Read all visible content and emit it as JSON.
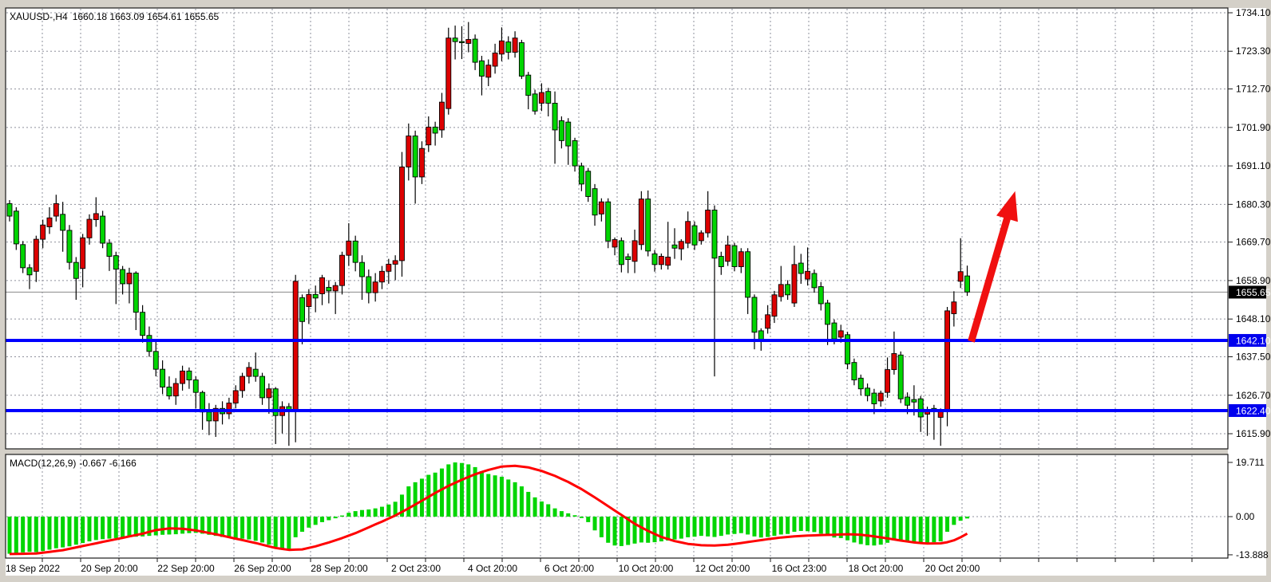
{
  "window": {
    "title_symbol": "XAUUSD-,H4",
    "title_ohlc": "1660.18 1663.09 1654.61 1655.65"
  },
  "indicator_label": {
    "name": "MACD(12,26,9)",
    "values": "-0.667 -6.166"
  },
  "colors": {
    "bull": "#dd0000",
    "bear": "#00d500",
    "wick": "#000000",
    "grid": "#8f909c",
    "support_line": "#0000ff",
    "signal_line": "#ff0000",
    "histogram": "#00d500",
    "arrow": "#f01010",
    "current_price_line": "#8a8a8a",
    "tag_current_bg": "#000000",
    "tag_level_bg": "#0000ee",
    "tag_text": "#ffffff",
    "pane_bg": "#ffffff",
    "frame_bg": "#d4d0c8",
    "border": "#1a1a1a",
    "text": "#000000"
  },
  "chart_data": {
    "type": "candlestick",
    "symbol": "XAUUSD-",
    "timeframe": "H4",
    "title": "XAUUSD-,H4 1660.18 1663.09 1654.61 1655.65",
    "current_candle": {
      "open": 1660.18,
      "high": 1663.09,
      "low": 1654.61,
      "close": 1655.65
    },
    "current_price": 1655.65,
    "support_levels": [
      1642.1,
      1622.4
    ],
    "price_axis": {
      "ticks": [
        1734.1,
        1723.3,
        1712.7,
        1701.9,
        1691.1,
        1680.3,
        1669.7,
        1658.9,
        1648.1,
        1637.5,
        1626.7,
        1615.9
      ],
      "range": [
        1615.9,
        1734.1
      ]
    },
    "time_axis": {
      "ticks": [
        "18 Sep 2022",
        "20 Sep 20:00",
        "22 Sep 20:00",
        "26 Sep 20:00",
        "28 Sep 20:00",
        "2 Oct 23:00",
        "4 Oct 20:00",
        "6 Oct 20:00",
        "10 Oct 20:00",
        "12 Oct 20:00",
        "16 Oct 23:00",
        "18 Oct 20:00",
        "20 Oct 20:00"
      ]
    },
    "candles": [
      [
        1680.5,
        1681.5,
        1675.5,
        1677.0
      ],
      [
        1678.4,
        1679.5,
        1667.5,
        1669.2
      ],
      [
        1669.0,
        1670.0,
        1661.0,
        1662.5
      ],
      [
        1662.5,
        1663.5,
        1656.5,
        1660.5
      ],
      [
        1661.5,
        1671.5,
        1658.5,
        1670.5
      ],
      [
        1670.5,
        1676.0,
        1668.0,
        1674.5
      ],
      [
        1674.0,
        1679.5,
        1672.0,
        1676.5
      ],
      [
        1677.0,
        1683.0,
        1675.5,
        1680.5
      ],
      [
        1677.5,
        1681.0,
        1667.0,
        1673.0
      ],
      [
        1673.0,
        1674.5,
        1662.0,
        1664.0
      ],
      [
        1664.0,
        1665.5,
        1653.5,
        1659.5
      ],
      [
        1662.3,
        1672.0,
        1657.0,
        1670.9
      ],
      [
        1670.9,
        1677.5,
        1669.0,
        1676.1
      ],
      [
        1676.0,
        1682.3,
        1674.0,
        1677.7
      ],
      [
        1677.0,
        1678.5,
        1668.0,
        1669.4
      ],
      [
        1669.4,
        1670.5,
        1661.6,
        1665.7
      ],
      [
        1665.9,
        1667.0,
        1652.3,
        1662.1
      ],
      [
        1662.0,
        1663.0,
        1655.0,
        1658.0
      ],
      [
        1658.0,
        1662.5,
        1652.5,
        1661.0
      ],
      [
        1661.0,
        1661.5,
        1645.0,
        1650.0
      ],
      [
        1650.0,
        1652.0,
        1641.5,
        1643.5
      ],
      [
        1643.5,
        1646.0,
        1637.5,
        1639.0
      ],
      [
        1639.0,
        1642.0,
        1632.0,
        1634.0
      ],
      [
        1634.0,
        1636.5,
        1627.0,
        1629.0
      ],
      [
        1629.0,
        1632.0,
        1625.5,
        1626.5
      ],
      [
        1626.5,
        1631.5,
        1624.0,
        1630.0
      ],
      [
        1630.0,
        1635.0,
        1628.0,
        1633.5
      ],
      [
        1633.5,
        1634.5,
        1628.5,
        1631.0
      ],
      [
        1631.0,
        1632.0,
        1623.0,
        1627.5
      ],
      [
        1627.5,
        1628.0,
        1617.0,
        1622.0
      ],
      [
        1622.0,
        1624.5,
        1615.5,
        1619.5
      ],
      [
        1619.5,
        1624.0,
        1615.0,
        1623.0
      ],
      [
        1623.0,
        1625.0,
        1618.5,
        1621.5
      ],
      [
        1621.5,
        1626.0,
        1620.0,
        1624.5
      ],
      [
        1624.5,
        1629.5,
        1623.0,
        1628.0
      ],
      [
        1628.0,
        1633.0,
        1626.0,
        1632.0
      ],
      [
        1632.0,
        1636.0,
        1630.0,
        1634.5
      ],
      [
        1634.0,
        1638.7,
        1630.5,
        1632.0
      ],
      [
        1632.0,
        1633.0,
        1624.0,
        1626.0
      ],
      [
        1626.0,
        1630.0,
        1621.5,
        1628.5
      ],
      [
        1628.5,
        1629.0,
        1613.0,
        1621.0
      ],
      [
        1621.0,
        1625.0,
        1616.0,
        1623.5
      ],
      [
        1623.5,
        1624.5,
        1612.5,
        1622.5
      ],
      [
        1622.4,
        1660.5,
        1613.5,
        1658.7
      ],
      [
        1654.1,
        1655.0,
        1641.0,
        1647.4
      ],
      [
        1651.6,
        1656.5,
        1646.7,
        1655.0
      ],
      [
        1655.0,
        1657.5,
        1650.0,
        1654.0
      ],
      [
        1655.2,
        1660.5,
        1652.0,
        1659.7
      ],
      [
        1657.0,
        1659.0,
        1652.5,
        1656.0
      ],
      [
        1656.0,
        1658.5,
        1649.5,
        1657.5
      ],
      [
        1657.5,
        1667.0,
        1655.0,
        1666.0
      ],
      [
        1666.0,
        1675.0,
        1663.0,
        1670.0
      ],
      [
        1670.0,
        1671.5,
        1661.5,
        1664.0
      ],
      [
        1664.0,
        1666.0,
        1653.5,
        1660.0
      ],
      [
        1660.0,
        1662.0,
        1652.5,
        1655.5
      ],
      [
        1655.5,
        1661.0,
        1653.0,
        1658.5
      ],
      [
        1658.5,
        1663.0,
        1656.5,
        1661.5
      ],
      [
        1661.5,
        1665.0,
        1658.0,
        1663.5
      ],
      [
        1663.5,
        1666.0,
        1659.0,
        1664.5
      ],
      [
        1664.5,
        1695.0,
        1660.0,
        1690.8
      ],
      [
        1690.8,
        1703.0,
        1687.0,
        1699.5
      ],
      [
        1699.5,
        1701.0,
        1680.5,
        1688.0
      ],
      [
        1688.0,
        1698.0,
        1686.0,
        1696.0
      ],
      [
        1697.0,
        1705.0,
        1695.0,
        1702.0
      ],
      [
        1702.0,
        1703.5,
        1696.8,
        1700.3
      ],
      [
        1701.2,
        1711.6,
        1699.0,
        1709.0
      ],
      [
        1707.2,
        1729.9,
        1705.5,
        1727.0
      ],
      [
        1727.0,
        1730.5,
        1721.0,
        1726.0
      ],
      [
        1726.0,
        1730.3,
        1721.1,
        1725.9
      ],
      [
        1725.5,
        1731.5,
        1723.0,
        1726.6
      ],
      [
        1726.7,
        1728.0,
        1718.0,
        1720.2
      ],
      [
        1720.6,
        1722.0,
        1710.9,
        1716.3
      ],
      [
        1716.0,
        1721.0,
        1713.5,
        1719.4
      ],
      [
        1719.1,
        1725.4,
        1717.0,
        1722.8
      ],
      [
        1722.5,
        1730.0,
        1720.5,
        1726.2
      ],
      [
        1725.9,
        1727.5,
        1721.0,
        1723.0
      ],
      [
        1723.0,
        1728.9,
        1721.5,
        1727.0
      ],
      [
        1725.7,
        1726.5,
        1715.5,
        1716.3
      ],
      [
        1716.6,
        1717.5,
        1707.0,
        1710.9
      ],
      [
        1711.3,
        1712.5,
        1705.5,
        1706.5
      ],
      [
        1708.7,
        1714.3,
        1706.5,
        1711.7
      ],
      [
        1712.0,
        1713.0,
        1705.0,
        1708.7
      ],
      [
        1708.7,
        1712.0,
        1691.7,
        1701.2
      ],
      [
        1703.8,
        1705.0,
        1696.0,
        1698.2
      ],
      [
        1703.4,
        1704.5,
        1691.4,
        1696.7
      ],
      [
        1698.2,
        1699.0,
        1689.5,
        1691.1
      ],
      [
        1691.1,
        1692.0,
        1684.0,
        1686.0
      ],
      [
        1689.6,
        1690.5,
        1681.0,
        1682.5
      ],
      [
        1684.7,
        1686.0,
        1674.3,
        1677.3
      ],
      [
        1677.6,
        1682.0,
        1675.5,
        1681.0
      ],
      [
        1681.0,
        1682.0,
        1668.0,
        1670.0
      ],
      [
        1668.3,
        1671.0,
        1666.0,
        1670.4
      ],
      [
        1670.1,
        1671.0,
        1661.2,
        1663.4
      ],
      [
        1665.6,
        1666.5,
        1661.0,
        1664.8
      ],
      [
        1664.3,
        1673.2,
        1661.0,
        1670.1
      ],
      [
        1669.0,
        1684.0,
        1667.5,
        1681.8
      ],
      [
        1681.8,
        1684.2,
        1665.7,
        1667.2
      ],
      [
        1666.4,
        1667.5,
        1661.4,
        1663.4
      ],
      [
        1663.4,
        1666.5,
        1662.0,
        1665.7
      ],
      [
        1663.2,
        1675.4,
        1662.0,
        1665.5
      ],
      [
        1668.9,
        1673.6,
        1665.0,
        1668.0
      ],
      [
        1667.8,
        1670.5,
        1664.6,
        1669.9
      ],
      [
        1669.4,
        1678.3,
        1668.0,
        1675.5
      ],
      [
        1674.3,
        1675.5,
        1667.5,
        1668.9
      ],
      [
        1670.1,
        1673.0,
        1669.0,
        1672.3
      ],
      [
        1672.3,
        1684.0,
        1671.0,
        1678.7
      ],
      [
        1678.7,
        1680.0,
        1632.0,
        1665.2
      ],
      [
        1665.7,
        1667.0,
        1660.5,
        1662.8
      ],
      [
        1664.3,
        1671.5,
        1663.0,
        1668.9
      ],
      [
        1668.7,
        1669.5,
        1661.5,
        1662.8
      ],
      [
        1662.8,
        1668.0,
        1661.0,
        1667.0
      ],
      [
        1667.0,
        1668.0,
        1649.5,
        1654.2
      ],
      [
        1654.2,
        1655.0,
        1639.6,
        1644.4
      ],
      [
        1644.8,
        1645.5,
        1639.2,
        1642.1
      ],
      [
        1645.5,
        1652.0,
        1644.0,
        1649.3
      ],
      [
        1648.9,
        1656.0,
        1647.0,
        1654.9
      ],
      [
        1654.4,
        1663.0,
        1653.0,
        1657.8
      ],
      [
        1657.8,
        1659.0,
        1653.5,
        1654.9
      ],
      [
        1652.6,
        1668.7,
        1651.5,
        1663.4
      ],
      [
        1663.8,
        1666.4,
        1658.0,
        1660.9
      ],
      [
        1659.3,
        1668.2,
        1657.5,
        1661.5
      ],
      [
        1660.9,
        1662.0,
        1655.5,
        1656.9
      ],
      [
        1657.2,
        1658.5,
        1650.5,
        1652.4
      ],
      [
        1652.6,
        1653.5,
        1640.8,
        1646.6
      ],
      [
        1647.0,
        1648.0,
        1641.0,
        1642.5
      ],
      [
        1643.0,
        1646.5,
        1641.5,
        1644.8
      ],
      [
        1643.7,
        1644.5,
        1634.0,
        1635.5
      ],
      [
        1635.9,
        1637.0,
        1629.5,
        1631.0
      ],
      [
        1631.5,
        1632.5,
        1626.6,
        1628.5
      ],
      [
        1628.7,
        1630.0,
        1625.0,
        1626.6
      ],
      [
        1627.3,
        1628.5,
        1621.4,
        1624.3
      ],
      [
        1625.1,
        1628.0,
        1623.5,
        1627.3
      ],
      [
        1627.5,
        1637.3,
        1626.0,
        1633.9
      ],
      [
        1633.9,
        1644.6,
        1632.5,
        1638.4
      ],
      [
        1638.0,
        1639.0,
        1624.5,
        1625.7
      ],
      [
        1626.2,
        1627.5,
        1621.4,
        1623.9
      ],
      [
        1625.5,
        1629.5,
        1621.0,
        1624.8
      ],
      [
        1625.7,
        1626.5,
        1616.4,
        1620.6
      ],
      [
        1621.4,
        1623.5,
        1615.3,
        1622.5
      ],
      [
        1623.0,
        1624.0,
        1614.2,
        1622.2
      ],
      [
        1620.5,
        1623.0,
        1612.5,
        1622.3
      ],
      [
        1622.4,
        1651.5,
        1618.0,
        1650.4
      ],
      [
        1649.6,
        1655.9,
        1646.0,
        1652.9
      ],
      [
        1658.7,
        1670.8,
        1656.8,
        1661.4
      ],
      [
        1660.2,
        1663.1,
        1654.6,
        1655.7
      ]
    ],
    "macd": {
      "name": "MACD(12,26,9)",
      "main_last": -0.667,
      "signal_last": -6.166,
      "axis_ticks": [
        "19.711",
        "0.00",
        "-13.888"
      ],
      "axis_values": [
        19.711,
        0.0,
        -13.888
      ],
      "histogram": [
        -13.5,
        -13.2,
        -13.0,
        -12.8,
        -12.9,
        -12.5,
        -12.0,
        -11.5,
        -11.2,
        -10.8,
        -10.2,
        -9.6,
        -9.0,
        -8.5,
        -8.2,
        -8.0,
        -7.8,
        -7.6,
        -7.5,
        -7.3,
        -7.2,
        -7.0,
        -6.8,
        -6.6,
        -6.5,
        -6.4,
        -6.2,
        -6.0,
        -5.9,
        -6.2,
        -6.6,
        -7.0,
        -7.4,
        -7.6,
        -7.8,
        -8.0,
        -8.3,
        -8.8,
        -9.4,
        -10.2,
        -11.0,
        -11.6,
        -11.9,
        -7.5,
        -5.5,
        -4.0,
        -3.0,
        -2.0,
        -1.3,
        -0.6,
        0.4,
        1.4,
        2.0,
        2.4,
        2.6,
        3.0,
        3.6,
        4.4,
        5.4,
        8.0,
        11.0,
        12.5,
        13.8,
        15.2,
        16.0,
        17.5,
        19.0,
        19.7,
        19.5,
        19.0,
        18.0,
        16.5,
        15.5,
        15.0,
        14.5,
        13.5,
        12.5,
        11.0,
        9.0,
        7.0,
        5.5,
        4.5,
        3.0,
        2.0,
        1.2,
        0.5,
        -0.5,
        -2.0,
        -5.0,
        -7.5,
        -9.5,
        -10.5,
        -10.7,
        -10.3,
        -9.8,
        -9.4,
        -9.5,
        -9.3,
        -9.0,
        -8.7,
        -8.3,
        -8.0,
        -7.5,
        -7.3,
        -7.0,
        -7.2,
        -7.4,
        -7.0,
        -6.5,
        -6.3,
        -6.0,
        -6.5,
        -7.2,
        -7.6,
        -7.4,
        -7.0,
        -6.5,
        -6.3,
        -5.5,
        -5.2,
        -5.3,
        -5.6,
        -6.2,
        -7.0,
        -7.6,
        -7.8,
        -8.6,
        -9.4,
        -10.0,
        -10.4,
        -10.5,
        -10.2,
        -9.5,
        -8.6,
        -8.8,
        -9.0,
        -9.4,
        -9.6,
        -9.5,
        -9.3,
        -9.0,
        -5.5,
        -3.0,
        -1.5,
        -0.667
      ],
      "signal_points": [
        [
          0,
          -13.6
        ],
        [
          4,
          -13.4
        ],
        [
          8,
          -12.2
        ],
        [
          12,
          -10.2
        ],
        [
          16,
          -8.2
        ],
        [
          20,
          -6.2
        ],
        [
          22,
          -4.9
        ],
        [
          24,
          -4.3
        ],
        [
          26,
          -4.4
        ],
        [
          28,
          -5.0
        ],
        [
          31,
          -6.4
        ],
        [
          34,
          -8.0
        ],
        [
          37,
          -9.6
        ],
        [
          40,
          -11.4
        ],
        [
          42,
          -12.1
        ],
        [
          44,
          -11.9
        ],
        [
          46,
          -10.8
        ],
        [
          48,
          -9.4
        ],
        [
          50,
          -7.8
        ],
        [
          52,
          -6.0
        ],
        [
          54,
          -3.9
        ],
        [
          56,
          -1.8
        ],
        [
          58,
          0.4
        ],
        [
          60,
          3.0
        ],
        [
          62,
          5.8
        ],
        [
          64,
          8.6
        ],
        [
          66,
          11.2
        ],
        [
          68,
          13.4
        ],
        [
          70,
          15.4
        ],
        [
          72,
          17.0
        ],
        [
          74,
          18.2
        ],
        [
          76,
          18.5
        ],
        [
          78,
          17.9
        ],
        [
          80,
          16.6
        ],
        [
          82,
          14.8
        ],
        [
          84,
          12.6
        ],
        [
          86,
          10.0
        ],
        [
          88,
          7.0
        ],
        [
          90,
          3.8
        ],
        [
          92,
          0.6
        ],
        [
          94,
          -2.6
        ],
        [
          96,
          -5.2
        ],
        [
          98,
          -7.4
        ],
        [
          100,
          -8.9
        ],
        [
          102,
          -9.9
        ],
        [
          104,
          -10.4
        ],
        [
          106,
          -10.5
        ],
        [
          108,
          -10.2
        ],
        [
          110,
          -9.6
        ],
        [
          112,
          -8.9
        ],
        [
          114,
          -8.2
        ],
        [
          116,
          -7.6
        ],
        [
          118,
          -7.2
        ],
        [
          120,
          -6.9
        ],
        [
          122,
          -6.7
        ],
        [
          124,
          -6.6
        ],
        [
          126,
          -6.4
        ],
        [
          128,
          -6.6
        ],
        [
          130,
          -7.2
        ],
        [
          132,
          -7.9
        ],
        [
          134,
          -8.7
        ],
        [
          136,
          -9.4
        ],
        [
          138,
          -9.8
        ],
        [
          140,
          -9.7
        ],
        [
          141,
          -9.3
        ],
        [
          142,
          -8.6
        ],
        [
          143,
          -7.5
        ],
        [
          144,
          -6.17
        ]
      ]
    },
    "arrow": {
      "start": {
        "bar": 144.6,
        "price": 1641.8
      },
      "end": {
        "bar": 151.2,
        "price": 1684.0
      }
    }
  }
}
